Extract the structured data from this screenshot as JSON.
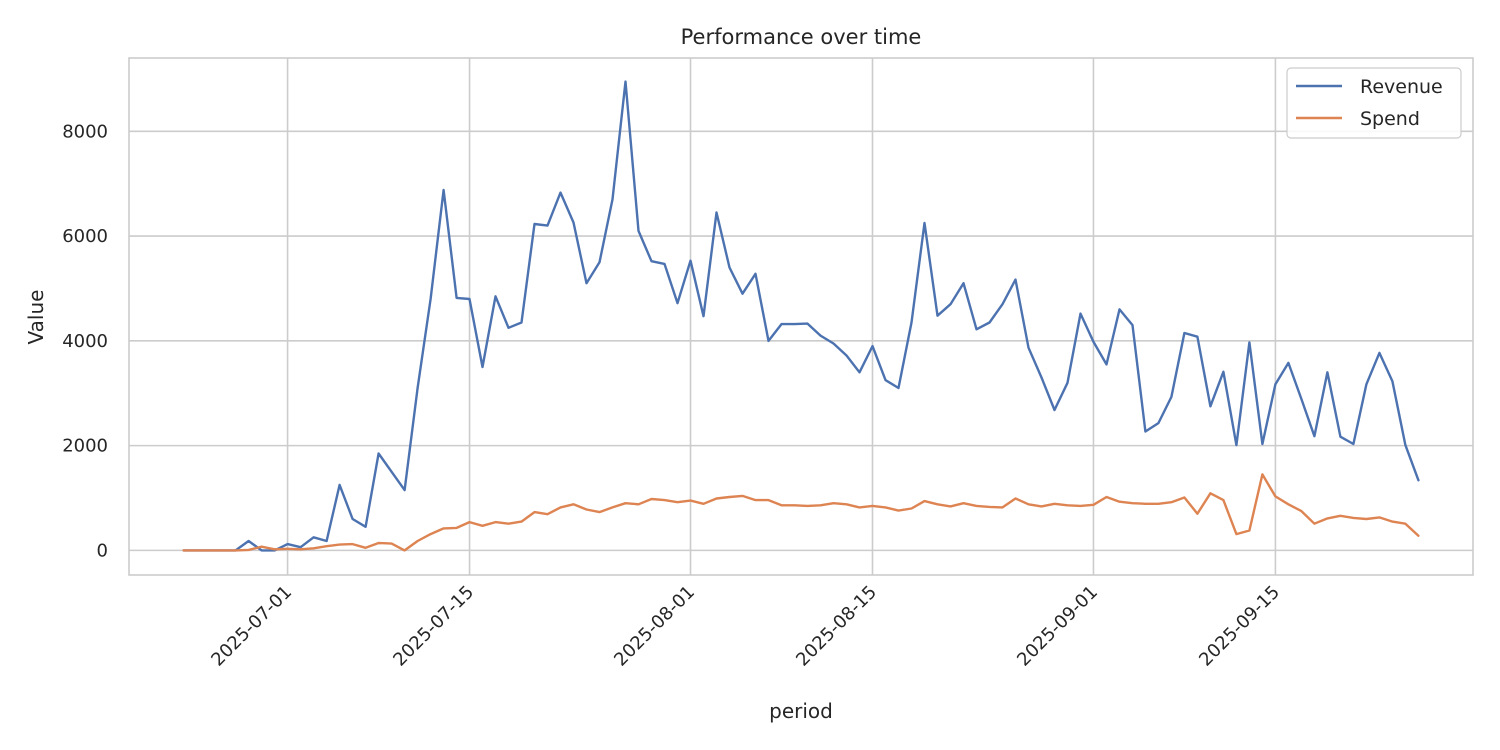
{
  "chart_data": {
    "type": "line",
    "title": "Performance over time",
    "xlabel": "period",
    "ylabel": "Value",
    "grid": true,
    "legend_position": "top-right",
    "x_ticks": [
      "2025-07-01",
      "2025-07-15",
      "2025-08-01",
      "2025-08-15",
      "2025-09-01",
      "2025-09-15"
    ],
    "y_ticks": [
      0,
      2000,
      4000,
      6000,
      8000
    ],
    "x_start": "2025-06-23",
    "ylim": [
      -470,
      9400
    ],
    "series": [
      {
        "name": "Revenue",
        "color": "#4c72b0",
        "values": [
          0,
          0,
          0,
          0,
          0,
          180,
          0,
          0,
          120,
          60,
          250,
          180,
          1250,
          600,
          450,
          1850,
          1500,
          1150,
          3100,
          4800,
          6880,
          4820,
          4800,
          3500,
          4850,
          4250,
          4350,
          6230,
          6200,
          6830,
          6260,
          5100,
          5500,
          6700,
          8950,
          6100,
          5520,
          5470,
          4720,
          5530,
          4470,
          6450,
          5400,
          4900,
          5280,
          4000,
          4320,
          4320,
          4330,
          4100,
          3950,
          3720,
          3400,
          3900,
          3250,
          3100,
          4350,
          6250,
          4480,
          4700,
          5100,
          4220,
          4350,
          4700,
          5170,
          3870,
          3300,
          2680,
          3200,
          4520,
          3980,
          3550,
          4600,
          4300,
          2270,
          2430,
          2930,
          4150,
          4080,
          2750,
          3410,
          2010,
          3970,
          2030,
          3170,
          3580,
          2890,
          2180,
          3400,
          2170,
          2030,
          3170,
          3770,
          3230,
          2010,
          1340
        ]
      },
      {
        "name": "Spend",
        "color": "#dd8452",
        "values": [
          0,
          0,
          0,
          0,
          0,
          10,
          70,
          20,
          30,
          20,
          40,
          80,
          110,
          120,
          50,
          140,
          130,
          0,
          180,
          310,
          420,
          430,
          540,
          470,
          540,
          510,
          550,
          730,
          690,
          820,
          880,
          780,
          730,
          820,
          900,
          880,
          980,
          960,
          920,
          950,
          890,
          990,
          1020,
          1040,
          960,
          960,
          860,
          860,
          850,
          860,
          900,
          880,
          820,
          850,
          820,
          760,
          800,
          940,
          880,
          840,
          900,
          850,
          830,
          820,
          990,
          880,
          840,
          890,
          860,
          850,
          870,
          1020,
          930,
          900,
          890,
          890,
          920,
          1010,
          700,
          1090,
          960,
          310,
          380,
          1450,
          1030,
          880,
          750,
          510,
          610,
          660,
          620,
          600,
          630,
          550,
          510,
          280
        ]
      }
    ]
  }
}
